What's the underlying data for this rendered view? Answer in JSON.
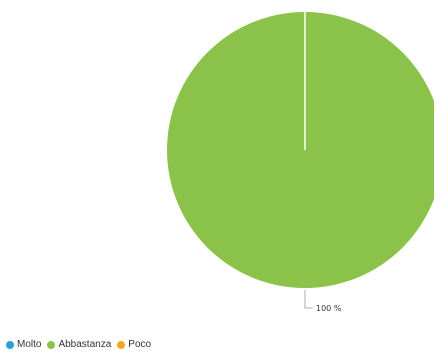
{
  "chart_data": {
    "type": "pie",
    "categories": [
      "Molto",
      "Abbastanza",
      "Poco"
    ],
    "values": [
      0,
      100,
      0
    ],
    "colors": [
      "#2a9fd8",
      "#8bc34a",
      "#f5a623"
    ],
    "data_labels": [
      "",
      "100 %",
      ""
    ],
    "legend_position": "bottom-left",
    "title": ""
  }
}
